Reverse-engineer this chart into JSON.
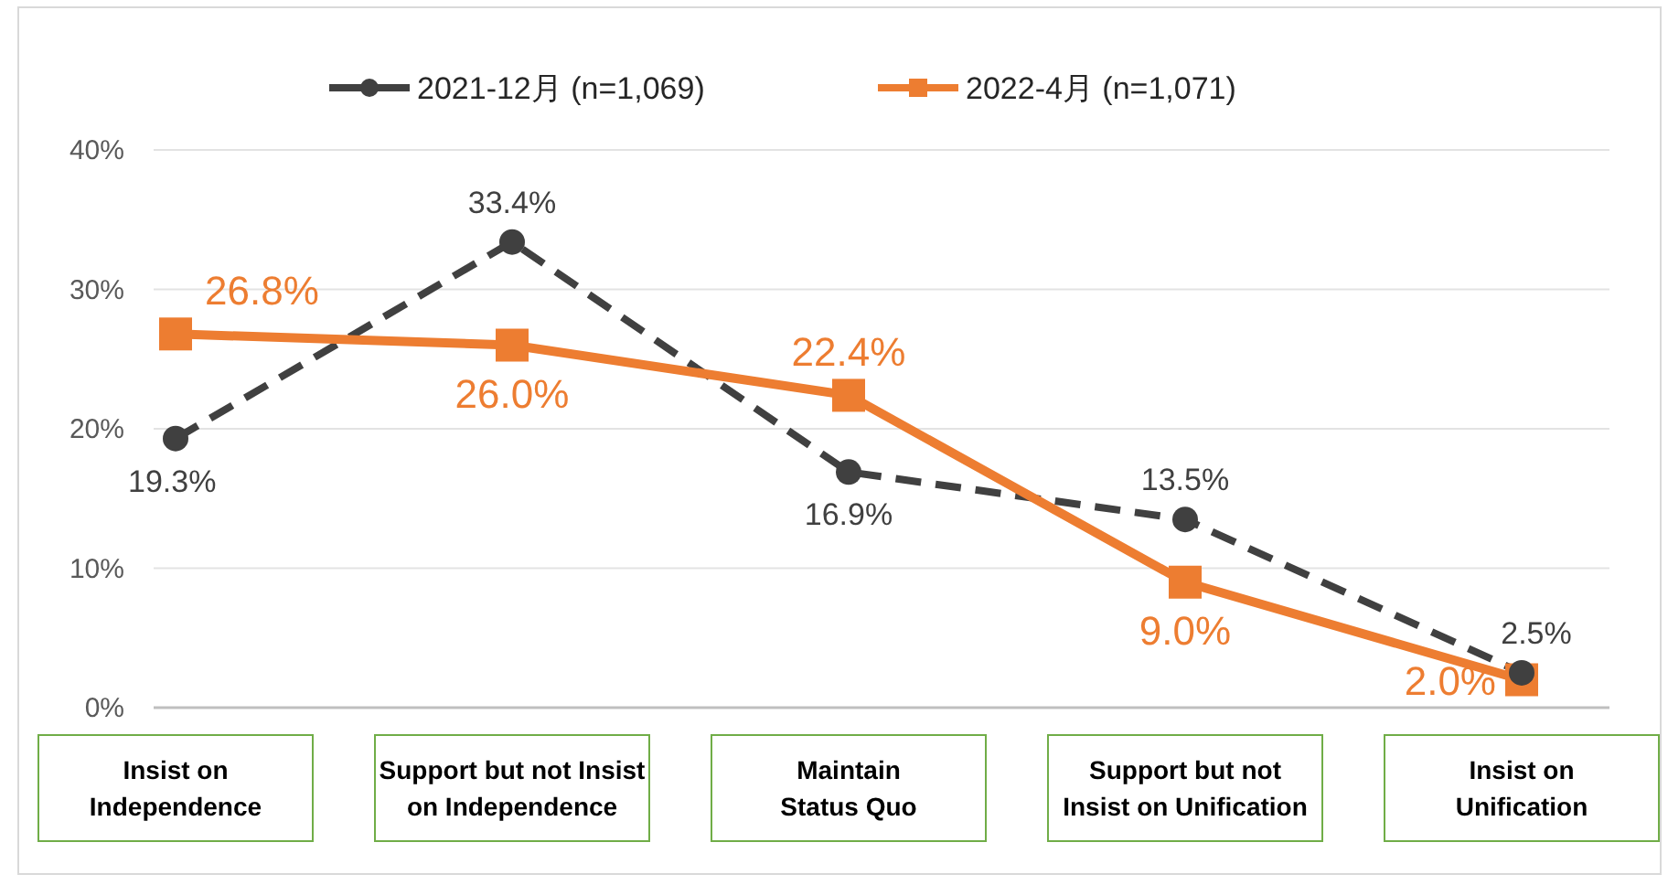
{
  "chart_data": {
    "type": "line",
    "categories": [
      "Insist on\nIndependence",
      "Support but not Insist\non Independence",
      "Maintain\nStatus Quo",
      "Support but not\nInsist on Unification",
      "Insist on\nUnification"
    ],
    "series": [
      {
        "name": "2021-12月 (n=1,069)",
        "color": "#404040",
        "marker": "circle",
        "line_style": "dashed",
        "values": [
          19.3,
          33.4,
          16.9,
          13.5,
          2.5
        ],
        "value_labels": [
          "19.3%",
          "33.4%",
          "16.9%",
          "13.5%",
          "2.5%"
        ]
      },
      {
        "name": "2022-4月 (n=1,071)",
        "color": "#ed7d31",
        "marker": "square",
        "line_style": "solid",
        "values": [
          26.8,
          26.0,
          22.4,
          9.0,
          2.0
        ],
        "value_labels": [
          "26.8%",
          "26.0%",
          "22.4%",
          "9.0%",
          "2.0%"
        ]
      }
    ],
    "ylim": [
      0,
      40
    ],
    "yticks": [
      {
        "value": 0,
        "label": "0%"
      },
      {
        "value": 10,
        "label": "10%"
      },
      {
        "value": 20,
        "label": "20%"
      },
      {
        "value": 30,
        "label": "30%"
      },
      {
        "value": 40,
        "label": "40%"
      }
    ],
    "grid": "y",
    "legend": "top"
  }
}
